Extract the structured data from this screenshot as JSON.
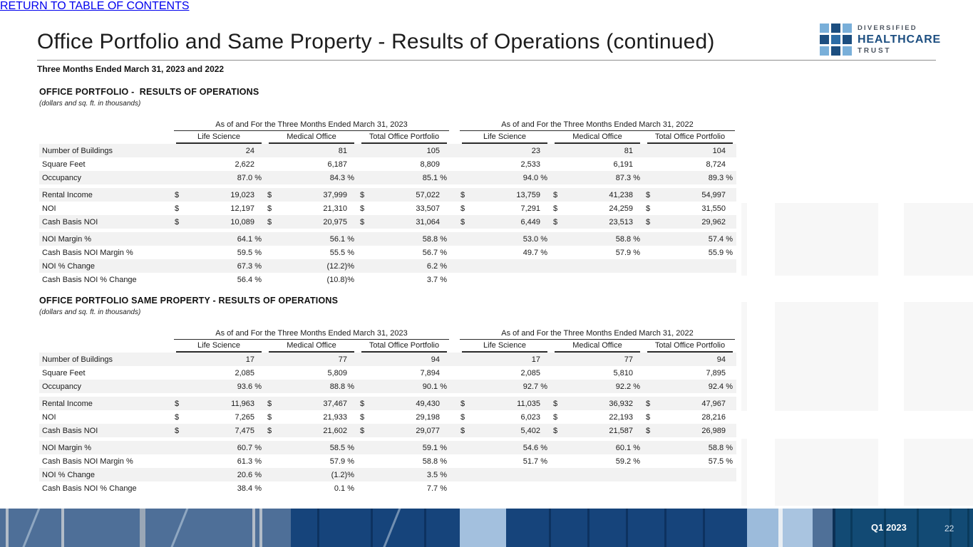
{
  "colors": {
    "brand_dark": "#1C4E80",
    "brand_mid": "#2C6CA6",
    "brand_light": "#79AFD9",
    "stripe": "#F2F2F2"
  },
  "slide": {
    "title": "Office Portfolio and Same Property - Results of Operations (continued)",
    "subtitle": "Three Months Ended March 31, 2023 and 2022"
  },
  "logo": {
    "line1": "DIVERSIFIED",
    "line2": "HEALTHCARE",
    "line3": "TRUST"
  },
  "tables": [
    {
      "section_title": "OFFICE PORTFOLIO -  RESULTS OF OPERATIONS",
      "section_note": "(dollars and sq. ft. in thousands)",
      "group_headers": [
        "As of and For the Three Months Ended March 31, 2023",
        "As of and For the Three Months Ended March 31, 2022"
      ],
      "column_headers": [
        "Life Science",
        "Medical Office",
        "Total Office Portfolio",
        "Life Science",
        "Medical Office",
        "Total Office Portfolio"
      ],
      "rows": [
        {
          "label": "Number of Buildings",
          "dollar": false,
          "values": [
            "24",
            "81",
            "105",
            "23",
            "81",
            "104"
          ]
        },
        {
          "label": "Square Feet",
          "dollar": false,
          "values": [
            "2,622",
            "6,187",
            "8,809",
            "2,533",
            "6,191",
            "8,724"
          ]
        },
        {
          "label": "Occupancy",
          "dollar": false,
          "values": [
            "87.0 %",
            "84.3 %",
            "85.1 %",
            "94.0 %",
            "87.3 %",
            "89.3 %"
          ]
        },
        {
          "label": "Rental Income",
          "dollar": true,
          "values": [
            "19,023",
            "37,999",
            "57,022",
            "13,759",
            "41,238",
            "54,997"
          ]
        },
        {
          "label": "NOI",
          "dollar": true,
          "values": [
            "12,197",
            "21,310",
            "33,507",
            "7,291",
            "24,259",
            "31,550"
          ]
        },
        {
          "label": "Cash Basis NOI",
          "dollar": true,
          "values": [
            "10,089",
            "20,975",
            "31,064",
            "6,449",
            "23,513",
            "29,962"
          ]
        },
        {
          "label": "NOI Margin %",
          "dollar": false,
          "values": [
            "64.1 %",
            "56.1 %",
            "58.8 %",
            "53.0 %",
            "58.8 %",
            "57.4 %"
          ]
        },
        {
          "label": "Cash Basis NOI Margin %",
          "dollar": false,
          "values": [
            "59.5 %",
            "55.5 %",
            "56.7 %",
            "49.7 %",
            "57.9 %",
            "55.9 %"
          ]
        },
        {
          "label": "NOI % Change",
          "dollar": false,
          "values": [
            "67.3 %",
            "(12.2)%",
            "6.2 %",
            "",
            "",
            ""
          ]
        },
        {
          "label": "Cash Basis NOI % Change",
          "dollar": false,
          "values": [
            "56.4 %",
            "(10.8)%",
            "3.7 %",
            "",
            "",
            ""
          ]
        }
      ]
    },
    {
      "section_title": "OFFICE PORTFOLIO SAME PROPERTY - RESULTS OF OPERATIONS",
      "section_note": "(dollars and sq. ft. in thousands)",
      "group_headers": [
        "As of and For the Three Months Ended March 31, 2023",
        "As of and For the Three Months Ended March 31, 2022"
      ],
      "column_headers": [
        "Life Science",
        "Medical Office",
        "Total Office Portfolio",
        "Life Science",
        "Medical Office",
        "Total Office Portfolio"
      ],
      "rows": [
        {
          "label": "Number of Buildings",
          "dollar": false,
          "values": [
            "17",
            "77",
            "94",
            "17",
            "77",
            "94"
          ]
        },
        {
          "label": "Square Feet",
          "dollar": false,
          "values": [
            "2,085",
            "5,809",
            "7,894",
            "2,085",
            "5,810",
            "7,895"
          ]
        },
        {
          "label": "Occupancy",
          "dollar": false,
          "values": [
            "93.6 %",
            "88.8 %",
            "90.1 %",
            "92.7 %",
            "92.2 %",
            "92.4 %"
          ]
        },
        {
          "label": "Rental Income",
          "dollar": true,
          "values": [
            "11,963",
            "37,467",
            "49,430",
            "11,035",
            "36,932",
            "47,967"
          ]
        },
        {
          "label": "NOI",
          "dollar": true,
          "values": [
            "7,265",
            "21,933",
            "29,198",
            "6,023",
            "22,193",
            "28,216"
          ]
        },
        {
          "label": "Cash Basis NOI",
          "dollar": true,
          "values": [
            "7,475",
            "21,602",
            "29,077",
            "5,402",
            "21,587",
            "26,989"
          ]
        },
        {
          "label": "NOI Margin %",
          "dollar": false,
          "values": [
            "60.7 %",
            "58.5 %",
            "59.1 %",
            "54.6 %",
            "60.1 %",
            "58.8 %"
          ]
        },
        {
          "label": "Cash Basis NOI Margin %",
          "dollar": false,
          "values": [
            "61.3 %",
            "57.9 %",
            "58.8 %",
            "51.7 %",
            "59.2 %",
            "57.5 %"
          ]
        },
        {
          "label": "NOI % Change",
          "dollar": false,
          "values": [
            "20.6 %",
            "(1.2)%",
            "3.5 %",
            "",
            "",
            ""
          ]
        },
        {
          "label": "Cash Basis NOI % Change",
          "dollar": false,
          "values": [
            "38.4 %",
            "0.1 %",
            "7.7 %",
            "",
            "",
            ""
          ]
        }
      ]
    }
  ],
  "footer": {
    "return_link": "RETURN TO TABLE OF CONTENTS",
    "quarter": "Q1 2023",
    "page_number": "22"
  }
}
